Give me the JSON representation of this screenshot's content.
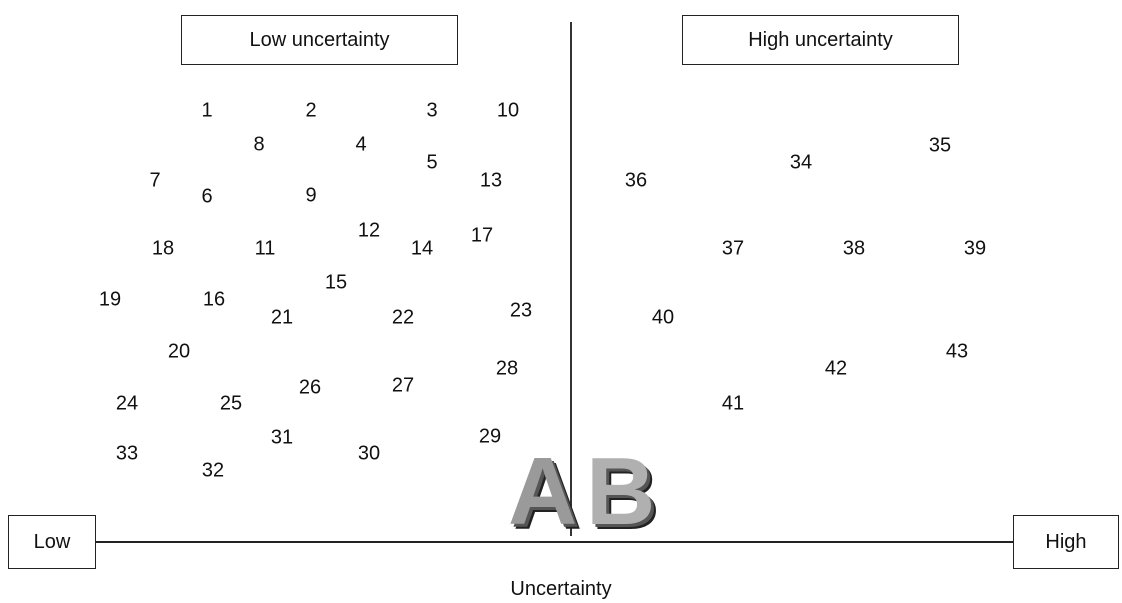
{
  "low_box": "Low uncertainty",
  "high_box": "High uncertainty",
  "axis": {
    "low_label": "Low",
    "high_label": "High",
    "title": "Uncertainty"
  },
  "panel_letters": {
    "left": "A",
    "right": "B"
  },
  "items": [
    {
      "n": "1",
      "group": "low"
    },
    {
      "n": "2",
      "group": "low"
    },
    {
      "n": "3",
      "group": "low"
    },
    {
      "n": "10",
      "group": "low"
    },
    {
      "n": "8",
      "group": "low"
    },
    {
      "n": "4",
      "group": "low"
    },
    {
      "n": "5",
      "group": "low"
    },
    {
      "n": "13",
      "group": "low"
    },
    {
      "n": "7",
      "group": "low"
    },
    {
      "n": "6",
      "group": "low"
    },
    {
      "n": "9",
      "group": "low"
    },
    {
      "n": "12",
      "group": "low"
    },
    {
      "n": "14",
      "group": "low"
    },
    {
      "n": "17",
      "group": "low"
    },
    {
      "n": "18",
      "group": "low"
    },
    {
      "n": "11",
      "group": "low"
    },
    {
      "n": "15",
      "group": "low"
    },
    {
      "n": "19",
      "group": "low"
    },
    {
      "n": "16",
      "group": "low"
    },
    {
      "n": "21",
      "group": "low"
    },
    {
      "n": "22",
      "group": "low"
    },
    {
      "n": "23",
      "group": "low"
    },
    {
      "n": "20",
      "group": "low"
    },
    {
      "n": "28",
      "group": "low"
    },
    {
      "n": "26",
      "group": "low"
    },
    {
      "n": "27",
      "group": "low"
    },
    {
      "n": "24",
      "group": "low"
    },
    {
      "n": "25",
      "group": "low"
    },
    {
      "n": "31",
      "group": "low"
    },
    {
      "n": "29",
      "group": "low"
    },
    {
      "n": "33",
      "group": "low"
    },
    {
      "n": "30",
      "group": "low"
    },
    {
      "n": "32",
      "group": "low"
    },
    {
      "n": "34",
      "group": "high"
    },
    {
      "n": "35",
      "group": "high"
    },
    {
      "n": "36",
      "group": "high"
    },
    {
      "n": "37",
      "group": "high"
    },
    {
      "n": "38",
      "group": "high"
    },
    {
      "n": "39",
      "group": "high"
    },
    {
      "n": "40",
      "group": "high"
    },
    {
      "n": "42",
      "group": "high"
    },
    {
      "n": "43",
      "group": "high"
    },
    {
      "n": "41",
      "group": "high"
    }
  ]
}
